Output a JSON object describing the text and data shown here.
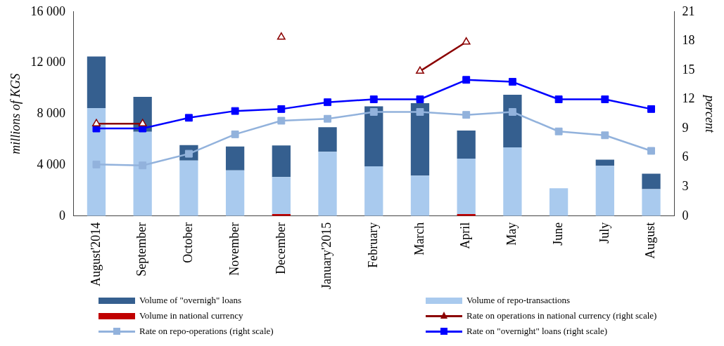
{
  "chart_data": {
    "type": "bar",
    "stacked": true,
    "legend": "bottom",
    "grid": false,
    "ylabel": "millions of KGS",
    "y2label": "percent",
    "categories": [
      "August'2014",
      "September",
      "October",
      "November",
      "December",
      "January'2015",
      "February",
      "March",
      "April",
      "May",
      "June",
      "July",
      "August"
    ],
    "ylim": [
      0,
      16000
    ],
    "yticks": [
      {
        "value": 0,
        "label": "0"
      },
      {
        "value": 4000,
        "label": "4 000"
      },
      {
        "value": 8000,
        "label": "8 000"
      },
      {
        "value": 12000,
        "label": "12 000"
      },
      {
        "value": 16000,
        "label": "16 000"
      }
    ],
    "y2lim": [
      0,
      21
    ],
    "y2ticks": [
      0,
      3,
      6,
      9,
      12,
      15,
      18,
      21
    ],
    "series": [
      {
        "name": "Volume in national currency",
        "color": "#c00000",
        "values": [
          null,
          null,
          null,
          null,
          150,
          null,
          null,
          null,
          150,
          null,
          null,
          null,
          null
        ]
      },
      {
        "name": "Volume of repo-transactions",
        "color": "#a9caee",
        "values": [
          8450,
          6600,
          4350,
          3570,
          2900,
          5030,
          3890,
          3160,
          4350,
          5380,
          2180,
          3940,
          2110
        ]
      },
      {
        "name": "Volume of \"overnigh\" loans",
        "color": "#355f8f",
        "values": [
          4050,
          2740,
          1200,
          1880,
          2480,
          1930,
          4710,
          5680,
          2190,
          4120,
          null,
          480,
          1210
        ]
      },
      {
        "name": "Rate on operations in national currency (right scale)",
        "type": "line",
        "axis": "y2",
        "marker": "triangle",
        "color": "#8b0000",
        "values": [
          9.5,
          9.5,
          null,
          null,
          18.4,
          null,
          null,
          14.9,
          17.9,
          null,
          null,
          null,
          null
        ]
      },
      {
        "name": "Rate on repo-operations (right scale)",
        "type": "line",
        "axis": "y2",
        "marker": "square",
        "color": "#92b2dc",
        "values": [
          5.3,
          5.2,
          6.4,
          8.4,
          9.8,
          10.0,
          10.7,
          10.7,
          10.4,
          10.7,
          8.7,
          8.3,
          6.7
        ]
      },
      {
        "name": "Rate on \"overnight\" loans (right scale)",
        "type": "line",
        "axis": "y2",
        "marker": "square",
        "color": "#0000ff",
        "values": [
          9.0,
          9.0,
          10.1,
          10.8,
          11.0,
          11.7,
          12.0,
          12.0,
          14.0,
          13.8,
          12.0,
          12.0,
          11.0
        ]
      }
    ]
  }
}
